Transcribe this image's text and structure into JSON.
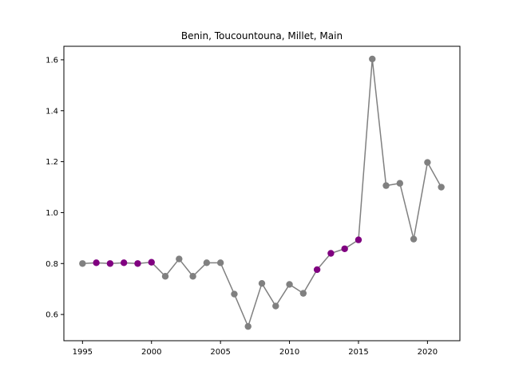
{
  "chart_data": {
    "type": "line",
    "title": "Benin, Toucountouna, Millet, Main",
    "xlabel": "",
    "ylabel": "",
    "xlim": [
      1993.65,
      2022.35
    ],
    "ylim": [
      0.497,
      1.653
    ],
    "x_ticks": [
      1995,
      2000,
      2005,
      2010,
      2015,
      2020
    ],
    "y_ticks": [
      0.6,
      0.8,
      1.0,
      1.2,
      1.4,
      1.6
    ],
    "x_tick_labels": [
      "1995",
      "2000",
      "2005",
      "2010",
      "2015",
      "2020"
    ],
    "y_tick_labels": [
      "0.6",
      "0.8",
      "1.0",
      "1.2",
      "1.4",
      "1.6"
    ],
    "grid": false,
    "line_color": "#808080",
    "marker_color_default": "#808080",
    "marker_color_highlight": "#800080",
    "points": [
      {
        "x": 1995,
        "y": 0.8,
        "highlight": false
      },
      {
        "x": 1996,
        "y": 0.803,
        "highlight": true
      },
      {
        "x": 1997,
        "y": 0.8,
        "highlight": true
      },
      {
        "x": 1998,
        "y": 0.803,
        "highlight": true
      },
      {
        "x": 1999,
        "y": 0.8,
        "highlight": true
      },
      {
        "x": 2000,
        "y": 0.805,
        "highlight": true
      },
      {
        "x": 2001,
        "y": 0.75,
        "highlight": false
      },
      {
        "x": 2002,
        "y": 0.818,
        "highlight": false
      },
      {
        "x": 2003,
        "y": 0.75,
        "highlight": false
      },
      {
        "x": 2004,
        "y": 0.803,
        "highlight": false
      },
      {
        "x": 2005,
        "y": 0.803,
        "highlight": false
      },
      {
        "x": 2006,
        "y": 0.68,
        "highlight": false
      },
      {
        "x": 2007,
        "y": 0.553,
        "highlight": false
      },
      {
        "x": 2008,
        "y": 0.722,
        "highlight": false
      },
      {
        "x": 2009,
        "y": 0.633,
        "highlight": false
      },
      {
        "x": 2010,
        "y": 0.718,
        "highlight": false
      },
      {
        "x": 2011,
        "y": 0.683,
        "highlight": false
      },
      {
        "x": 2012,
        "y": 0.776,
        "highlight": true
      },
      {
        "x": 2013,
        "y": 0.84,
        "highlight": true
      },
      {
        "x": 2014,
        "y": 0.858,
        "highlight": true
      },
      {
        "x": 2015,
        "y": 0.893,
        "highlight": true
      },
      {
        "x": 2016,
        "y": 1.603,
        "highlight": false
      },
      {
        "x": 2017,
        "y": 1.106,
        "highlight": false
      },
      {
        "x": 2018,
        "y": 1.115,
        "highlight": false
      },
      {
        "x": 2019,
        "y": 0.896,
        "highlight": false
      },
      {
        "x": 2020,
        "y": 1.197,
        "highlight": false
      },
      {
        "x": 2021,
        "y": 1.1,
        "highlight": false
      }
    ]
  }
}
